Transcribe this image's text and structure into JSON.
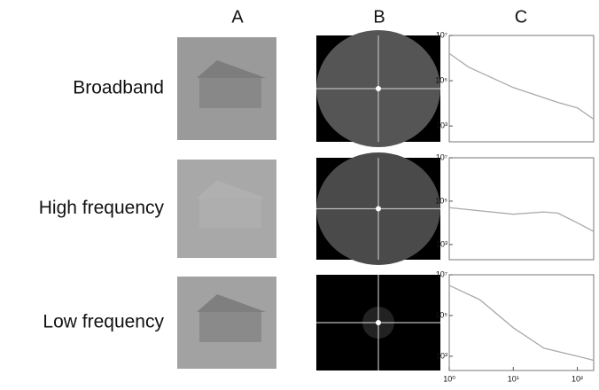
{
  "columns": [
    "A",
    "B",
    "C"
  ],
  "rows": [
    "Broadband",
    "High frequency",
    "Low frequency"
  ],
  "chart_data": [
    {
      "type": "line",
      "log_x": true,
      "log_y": true,
      "color": "#aaaaaa",
      "x": [
        1,
        2,
        10,
        50,
        100,
        180
      ],
      "values": [
        1600000,
        400000,
        50000,
        11000,
        6300,
        2000
      ],
      "xlim": [
        1,
        180
      ],
      "ylim": [
        200,
        10000000
      ],
      "yticks": [
        {
          "value": 1000,
          "label": "10³"
        },
        {
          "value": 100000,
          "label": "10⁵"
        },
        {
          "value": 10000000,
          "label": "10⁷"
        }
      ]
    },
    {
      "type": "line",
      "log_x": true,
      "log_y": true,
      "color": "#aaaaaa",
      "x": [
        1,
        10,
        30,
        50,
        100,
        180
      ],
      "values": [
        50000,
        25000,
        32000,
        28000,
        10000,
        4000
      ],
      "xlim": [
        1,
        180
      ],
      "ylim": [
        200,
        10000000
      ],
      "yticks": [
        {
          "value": 1000,
          "label": "10³"
        },
        {
          "value": 100000,
          "label": "10⁵"
        },
        {
          "value": 10000000,
          "label": "10⁷"
        }
      ]
    },
    {
      "type": "line",
      "log_x": true,
      "log_y": true,
      "color": "#aaaaaa",
      "x": [
        1,
        3,
        10,
        30,
        100,
        180
      ],
      "values": [
        3000000,
        600000,
        25000,
        2500,
        1000,
        630
      ],
      "xlim": [
        1,
        180
      ],
      "ylim": [
        200,
        10000000
      ],
      "yticks": [
        {
          "value": 1000,
          "label": "10³"
        },
        {
          "value": 100000,
          "label": "10⁵"
        },
        {
          "value": 10000000,
          "label": "10⁷"
        }
      ],
      "xticks": [
        {
          "value": 1,
          "label": "10⁰"
        },
        {
          "value": 10,
          "label": "10¹"
        },
        {
          "value": 100,
          "label": "10²"
        }
      ]
    }
  ]
}
